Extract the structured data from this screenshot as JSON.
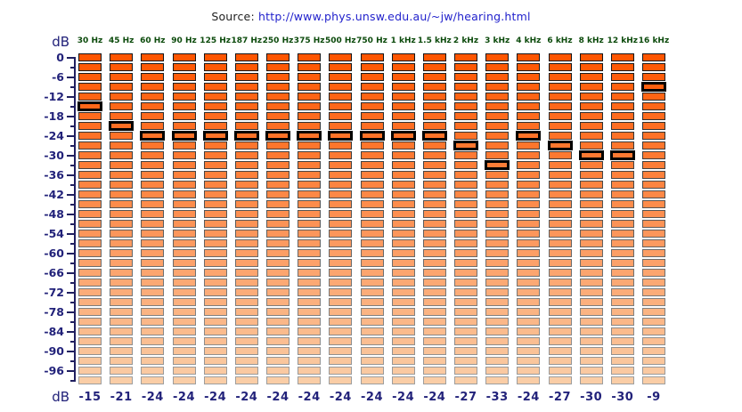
{
  "source": {
    "label": "Source:",
    "url": "http://www.phys.unsw.edu.au/~jw/hearing.html"
  },
  "axis": {
    "unit_label": "dB",
    "labels": [
      "0",
      "-6",
      "-12",
      "-18",
      "-24",
      "-30",
      "-36",
      "-42",
      "-48",
      "-54",
      "-60",
      "-66",
      "-72",
      "-78",
      "-84",
      "-90",
      "-96"
    ],
    "tick_step_db": 3,
    "label_step_db": 6
  },
  "footer": {
    "unit_label": "dB"
  },
  "chart_data": {
    "type": "bar",
    "subtype": "equalizer-level-meter",
    "title": "",
    "ylabel": "dB",
    "ylim": [
      0,
      -99
    ],
    "segment_step_db": 3,
    "segments_per_column": 34,
    "categories": [
      "30 Hz",
      "45 Hz",
      "60 Hz",
      "90 Hz",
      "125 Hz",
      "187 Hz",
      "250 Hz",
      "375 Hz",
      "500 Hz",
      "750 Hz",
      "1 kHz",
      "1.5 kHz",
      "2 kHz",
      "3 kHz",
      "4 kHz",
      "6 kHz",
      "8 kHz",
      "12 kHz",
      "16 kHz"
    ],
    "values": [
      -15,
      -21,
      -24,
      -24,
      -24,
      -24,
      -24,
      -24,
      -24,
      -24,
      -24,
      -24,
      -27,
      -33,
      -24,
      -27,
      -30,
      -30,
      -9
    ]
  },
  "colors": {
    "background": "#FFFFFF",
    "bar_fill_top": "#FF5500",
    "bar_fill_bottom": "#FACDA6",
    "bar_border_top": "#141414",
    "bar_border_bottom": "#9E9E9E",
    "highlight_border": "#000000",
    "axis_text": "#22227A",
    "frequency_text": "#0B4A0B",
    "source_text": "#222222",
    "link_text": "#2222CC"
  }
}
